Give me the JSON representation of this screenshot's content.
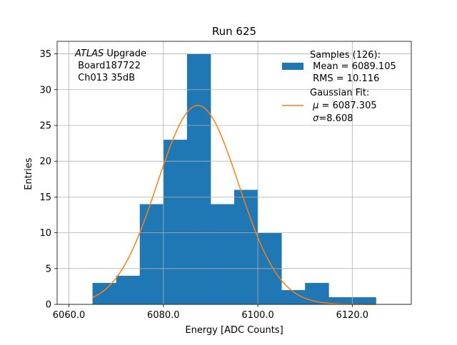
{
  "chart_data": {
    "type": "bar",
    "title": "Run 625",
    "xlabel": "Energy [ADC Counts]",
    "ylabel": "Entries",
    "xlim": [
      6057.5,
      6132.5
    ],
    "ylim": [
      0,
      36.75
    ],
    "grid": true,
    "legend_placement": "top-right",
    "x_ticks": [
      6060,
      6080,
      6100,
      6120
    ],
    "x_tick_labels": [
      "6060.0",
      "6080.0",
      "6100.0",
      "6120.0"
    ],
    "y_ticks": [
      0,
      5,
      10,
      15,
      20,
      25,
      30,
      35
    ],
    "y_tick_labels": [
      "0",
      "5",
      "10",
      "15",
      "20",
      "25",
      "30",
      "35"
    ],
    "bin_edges": [
      6065,
      6070,
      6075,
      6080,
      6085,
      6090,
      6095,
      6100,
      6105,
      6110,
      6115,
      6120,
      6125
    ],
    "counts": [
      3,
      4,
      14,
      23,
      35,
      14,
      16,
      10,
      2,
      3,
      1,
      1
    ],
    "fit": {
      "type": "gaussian",
      "mu": 6087.305,
      "sigma": 8.608,
      "amplitude": 27.8,
      "x_range": [
        6065,
        6125
      ]
    },
    "colors": {
      "histogram": "#1f77b4",
      "fit": "#ff7f0e",
      "grid": "#b0b0b0"
    },
    "annotation": {
      "line1_italic": "ATLAS",
      "line1_rest": " Upgrade",
      "line2": " Board187722",
      "line3": " Ch013 35dB"
    },
    "legend": {
      "hist_line1": "Samples (126):",
      "hist_line2": " Mean = 6089.105",
      "hist_line3": " RMS = 10.116",
      "fit_line1": "Gaussian Fit:",
      "fit_mu_symbol": "μ",
      "fit_mu_rest": " = 6087.305",
      "fit_sigma_symbol": "σ",
      "fit_sigma_rest": "=8.608"
    }
  }
}
